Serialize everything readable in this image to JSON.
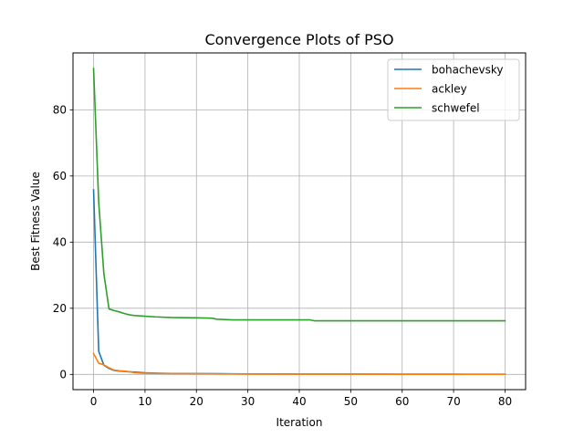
{
  "chart_data": {
    "type": "line",
    "title": "Convergence Plots of PSO",
    "xlabel": "Iteration",
    "ylabel": "Best Fitness Value",
    "xlim": [
      -4,
      84
    ],
    "ylim": [
      -4.6,
      97.2
    ],
    "xticks": [
      0,
      10,
      20,
      30,
      40,
      50,
      60,
      70,
      80
    ],
    "yticks": [
      0,
      20,
      40,
      60,
      80
    ],
    "grid": true,
    "legend_position": "top-right",
    "series": [
      {
        "name": "bohachevsky",
        "color": "#1f77b4",
        "x": [
          0,
          1,
          2,
          3,
          4,
          5,
          6,
          7,
          8,
          9,
          10,
          12,
          15,
          20,
          25,
          30,
          40,
          50,
          60,
          70,
          80
        ],
        "y": [
          55.8,
          7.0,
          2.8,
          1.8,
          1.2,
          1.0,
          0.9,
          0.8,
          0.7,
          0.6,
          0.5,
          0.4,
          0.3,
          0.25,
          0.2,
          0.15,
          0.12,
          0.1,
          0.08,
          0.06,
          0.05
        ]
      },
      {
        "name": "ackley",
        "color": "#ff7f0e",
        "x": [
          0,
          1,
          2,
          3,
          4,
          5,
          6,
          7,
          8,
          9,
          10,
          12,
          15,
          20,
          25,
          30,
          40,
          50,
          60,
          70,
          80
        ],
        "y": [
          6.3,
          3.4,
          2.9,
          2.0,
          1.3,
          1.1,
          1.0,
          0.8,
          0.5,
          0.4,
          0.35,
          0.3,
          0.25,
          0.2,
          0.15,
          0.1,
          0.08,
          0.06,
          0.05,
          0.04,
          0.03
        ]
      },
      {
        "name": "schwefel",
        "color": "#2ca02c",
        "x": [
          0,
          1,
          2,
          3,
          4,
          5,
          6,
          7,
          8,
          10,
          12,
          15,
          20,
          23,
          24,
          27,
          30,
          42,
          43,
          50,
          60,
          70,
          80
        ],
        "y": [
          92.5,
          52.0,
          30.5,
          19.8,
          19.3,
          18.9,
          18.4,
          18.0,
          17.8,
          17.6,
          17.4,
          17.2,
          17.1,
          17.0,
          16.7,
          16.5,
          16.5,
          16.5,
          16.2,
          16.2,
          16.2,
          16.2,
          16.2
        ]
      }
    ]
  }
}
